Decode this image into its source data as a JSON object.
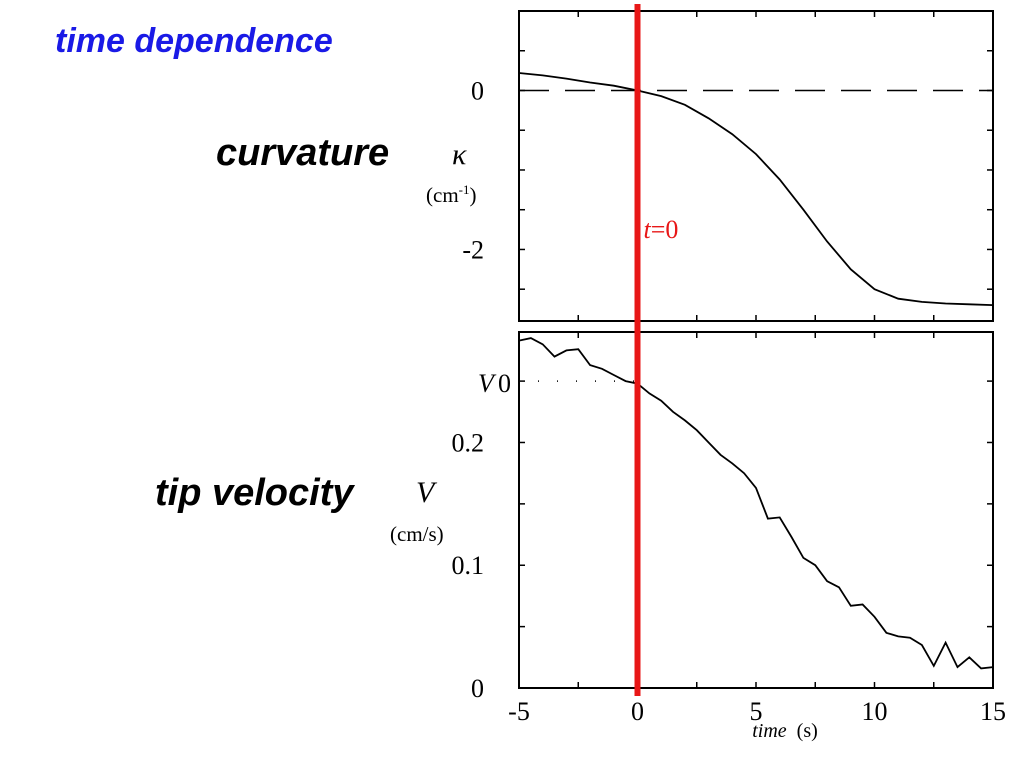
{
  "title": "time dependence",
  "chart_data": [
    {
      "type": "line",
      "ylabel_word": "curvature",
      "ylabel_symbol": "κ",
      "ylabel_unit_base": "(cm",
      "ylabel_unit_sup": "-1",
      "ylabel_unit_end": ")",
      "xlim": [
        -5,
        15
      ],
      "ylim": [
        -2.9,
        1.0
      ],
      "yticks": [
        0,
        -2
      ],
      "ytick_labels": [
        "0",
        "-2"
      ],
      "reference_line": {
        "y": 0,
        "style": "dashed"
      },
      "marker_line": {
        "x": 0,
        "label_var": "t",
        "label_eq": "=0",
        "color": "#e81717"
      },
      "series": [
        {
          "x": [
            -5,
            -4,
            -3,
            -2,
            -1,
            0,
            1,
            2,
            3,
            4,
            5,
            6,
            7,
            8,
            9,
            10,
            11,
            12,
            13,
            14,
            15
          ],
          "values": [
            0.22,
            0.19,
            0.15,
            0.1,
            0.06,
            0.0,
            -0.07,
            -0.18,
            -0.35,
            -0.55,
            -0.8,
            -1.12,
            -1.5,
            -1.9,
            -2.25,
            -2.5,
            -2.62,
            -2.66,
            -2.68,
            -2.69,
            -2.7
          ]
        }
      ]
    },
    {
      "type": "line",
      "ylabel_word": "tip velocity",
      "ylabel_symbol": "V",
      "ylabel_unit": "(cm/s)",
      "xlabel": "time  (s)",
      "xlim": [
        -5,
        15
      ],
      "ylim": [
        0,
        0.29
      ],
      "xticks": [
        -5,
        0,
        5,
        10,
        15
      ],
      "xtick_labels": [
        "-5",
        "0",
        "5",
        "10",
        "15"
      ],
      "yticks": [
        0.2,
        0.1,
        0
      ],
      "ytick_labels": [
        "0.2",
        "0.1",
        "0"
      ],
      "reference_line": {
        "y": 0.25,
        "style": "dotted",
        "label": "V",
        "label_sub": "0"
      },
      "series": [
        {
          "x": [
            -5,
            -4.5,
            -4,
            -3.5,
            -3,
            -2.5,
            -2,
            -1.5,
            -1,
            -0.5,
            0,
            0.5,
            1,
            1.5,
            2,
            2.5,
            3,
            3.5,
            4,
            4.5,
            5,
            5.5,
            6,
            6.5,
            7,
            7.5,
            8,
            8.5,
            9,
            9.5,
            10,
            10.5,
            11,
            11.5,
            12,
            12.5,
            13,
            13.5,
            14,
            14.5,
            15
          ],
          "values": [
            0.283,
            0.285,
            0.28,
            0.27,
            0.275,
            0.276,
            0.263,
            0.26,
            0.255,
            0.25,
            0.248,
            0.24,
            0.234,
            0.225,
            0.218,
            0.21,
            0.2,
            0.19,
            0.183,
            0.175,
            0.163,
            0.138,
            0.139,
            0.123,
            0.106,
            0.1,
            0.087,
            0.082,
            0.067,
            0.068,
            0.058,
            0.045,
            0.042,
            0.041,
            0.035,
            0.018,
            0.037,
            0.017,
            0.025,
            0.016,
            0.017
          ]
        }
      ]
    }
  ]
}
